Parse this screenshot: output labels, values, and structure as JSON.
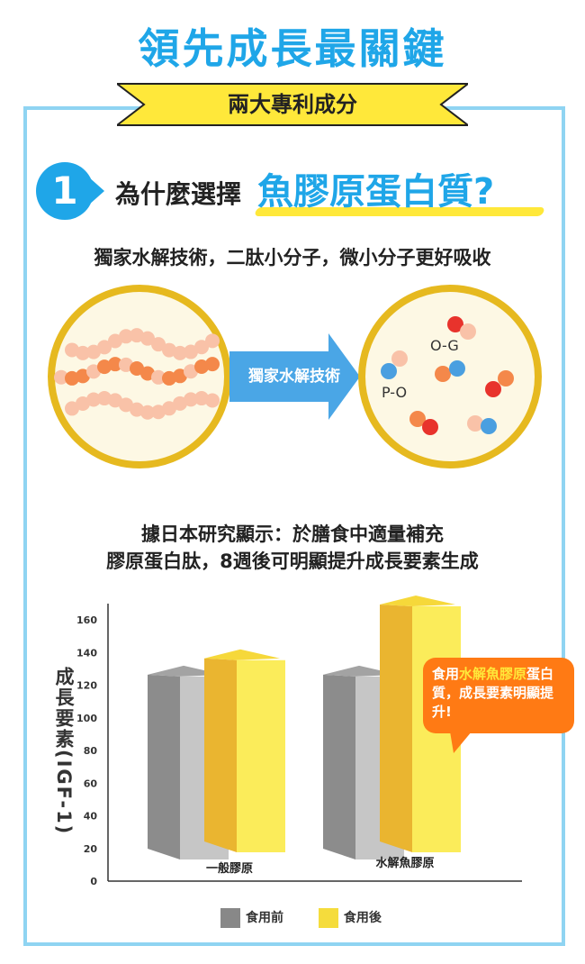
{
  "header": {
    "title": "領先成長最關鍵",
    "ribbon": "兩大專利成分"
  },
  "question": {
    "number": "1",
    "prefix": "為什麼選擇",
    "highlight": "魚膠原蛋白質",
    "mark": "?"
  },
  "subtitle": "獨家水解技術，二肽小分子，微小分子更好吸收",
  "diagram": {
    "arrow_label": "獨家水解技術",
    "labels": {
      "og": "O-G",
      "po": "P-O"
    },
    "colors": {
      "orange": "#f4884a",
      "peach": "#f9c2a8",
      "red": "#e8332c",
      "blue": "#4a9fe0",
      "ring": "#e6b91f",
      "arrow": "#4aa6e6"
    }
  },
  "study_text": {
    "line1": "據日本研究顯示：於膳食中適量補充",
    "line2": "膠原蛋白肽，8週後可明顯提升成長要素生成"
  },
  "callout": {
    "pre": "食用",
    "hl": "水解魚膠原",
    "post": "蛋白質，成長要素明顯提升!"
  },
  "chart_data": {
    "type": "bar",
    "categories": [
      "一般膠原",
      "水解魚膠原"
    ],
    "series": [
      {
        "name": "食用前",
        "values": [
          122,
          122
        ],
        "color": "#a9a9a9"
      },
      {
        "name": "食用後",
        "values": [
          132,
          165
        ],
        "color": "#f5dc3c"
      }
    ],
    "ylabel": "成長要素(IGF-1)",
    "ylim": [
      0,
      160
    ],
    "yticks": [
      0,
      20,
      40,
      60,
      80,
      100,
      120,
      140,
      160
    ],
    "legend": "bottom"
  }
}
